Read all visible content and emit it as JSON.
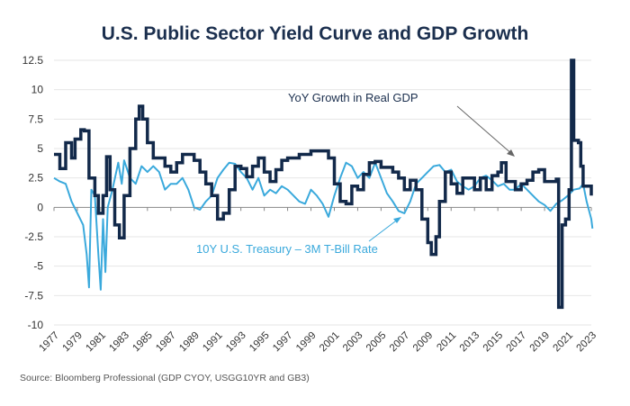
{
  "chart_data": {
    "type": "line",
    "title": "U.S. Public Sector Yield Curve and GDP Growth",
    "source": "Source: Bloomberg Professional (GDP CYOY, USGG10YR and GB3)",
    "xlabel": "",
    "ylabel": "",
    "xlim": [
      1977,
      2023
    ],
    "ylim": [
      -10,
      12.5
    ],
    "yticks": [
      "12.5",
      "10",
      "7.5",
      "5",
      "2.5",
      "0",
      "-2.5",
      "-5",
      "-7.5",
      "-10"
    ],
    "xticks": [
      "1977",
      "1979",
      "1981",
      "1983",
      "1985",
      "1987",
      "1989",
      "1991",
      "1993",
      "1995",
      "1997",
      "1999",
      "2001",
      "2003",
      "2005",
      "2007",
      "2009",
      "2011",
      "2013",
      "2015",
      "2017",
      "2019",
      "2021",
      "2023"
    ],
    "grid": true,
    "annotations": [
      {
        "text": "YoY Growth in Real GDP",
        "series": "gdp"
      },
      {
        "text": "10Y U.S. Treasury – 3M T-Bill Rate",
        "series": "spread"
      }
    ],
    "colors": {
      "gdp": "#12294a",
      "spread": "#3aa9dc",
      "title": "#1b2f4e"
    },
    "series": [
      {
        "id": "gdp",
        "name": "YoY Growth in Real GDP",
        "x": [
          1977,
          1977.5,
          1978,
          1978.5,
          1978.8,
          1979.3,
          1979.6,
          1980,
          1980.5,
          1980.8,
          1981.2,
          1981.5,
          1981.8,
          1982.2,
          1982.6,
          1983,
          1983.5,
          1984,
          1984.3,
          1984.6,
          1985,
          1985.5,
          1986.5,
          1987,
          1987.5,
          1988,
          1989,
          1989.5,
          1990,
          1990.5,
          1991,
          1991.5,
          1992,
          1992.5,
          1993,
          1993.5,
          1994,
          1994.5,
          1995,
          1995.5,
          1996,
          1996.5,
          1997,
          1998,
          1999,
          2000,
          2000.5,
          2001,
          2001.5,
          2002,
          2002.5,
          2003,
          2003.5,
          2004,
          2004.5,
          2005,
          2006,
          2006.5,
          2007,
          2007.5,
          2008,
          2008.5,
          2009,
          2009.3,
          2009.7,
          2010,
          2010.5,
          2011,
          2011.5,
          2012,
          2012.5,
          2013,
          2013.5,
          2014,
          2014.5,
          2015,
          2015.3,
          2015.7,
          2016.5,
          2017,
          2017.5,
          2018,
          2018.5,
          2019,
          2019.5,
          2020,
          2020.2,
          2020.5,
          2020.8,
          2021.1,
          2021.3,
          2021.5,
          2021.9,
          2022.1,
          2022.3,
          2022.8,
          2023
        ],
        "values": [
          4.5,
          3.3,
          5.5,
          4.2,
          5.8,
          6.6,
          6.5,
          2.5,
          1.0,
          -0.5,
          1.0,
          4.3,
          1.5,
          -1.5,
          -2.6,
          1.0,
          5.0,
          7.5,
          8.6,
          7.5,
          5.5,
          4.2,
          3.5,
          3.0,
          3.8,
          4.5,
          4.0,
          3.0,
          2.0,
          1.0,
          -1.0,
          -0.5,
          1.5,
          3.5,
          3.3,
          2.6,
          3.5,
          4.2,
          3.0,
          2.2,
          3.2,
          4.0,
          4.2,
          4.5,
          4.8,
          4.8,
          4.2,
          2.0,
          0.5,
          0.3,
          1.8,
          1.5,
          2.8,
          3.8,
          3.9,
          3.4,
          3.0,
          2.5,
          1.5,
          2.3,
          1.5,
          -1.0,
          -3.0,
          -4.0,
          -2.5,
          0.5,
          3.0,
          2.0,
          1.2,
          2.5,
          2.5,
          1.5,
          2.5,
          1.5,
          2.7,
          3.0,
          3.8,
          2.2,
          1.5,
          2.0,
          2.3,
          3.0,
          3.2,
          2.2,
          2.2,
          2.4,
          -8.5,
          -1.5,
          -1.0,
          1.5,
          12.5,
          5.7,
          5.5,
          3.5,
          1.8,
          1.8,
          1.0
        ]
      },
      {
        "id": "spread",
        "name": "10Y U.S. Treasury – 3M T-Bill Rate",
        "x": [
          1977,
          1977.5,
          1978,
          1978.5,
          1979,
          1979.5,
          1979.8,
          1980,
          1980.2,
          1980.5,
          1980.8,
          1981,
          1981.2,
          1981.4,
          1981.6,
          1982,
          1982.5,
          1982.8,
          1983,
          1983.5,
          1984,
          1984.5,
          1985,
          1985.5,
          1986,
          1986.5,
          1987,
          1987.5,
          1988,
          1988.5,
          1989,
          1989.5,
          1990,
          1990.5,
          1991,
          1991.5,
          1992,
          1992.5,
          1993,
          1993.5,
          1994,
          1994.5,
          1995,
          1995.5,
          1996,
          1996.5,
          1997,
          1998,
          1998.5,
          1999,
          1999.5,
          2000,
          2000.5,
          2001,
          2001.5,
          2002,
          2002.5,
          2003,
          2003.5,
          2004,
          2004.5,
          2005,
          2005.5,
          2006,
          2006.5,
          2007,
          2007.5,
          2008,
          2008.5,
          2009,
          2009.5,
          2010,
          2010.5,
          2011,
          2011.5,
          2012,
          2012.5,
          2013,
          2013.5,
          2014,
          2014.5,
          2015,
          2015.5,
          2016,
          2016.5,
          2017,
          2017.5,
          2018,
          2018.5,
          2019,
          2019.5,
          2020,
          2020.5,
          2021,
          2021.5,
          2022,
          2022.3,
          2022.6,
          2023,
          2023.1
        ],
        "values": [
          2.5,
          2.2,
          2.0,
          0.5,
          -0.5,
          -1.5,
          -4.0,
          -6.8,
          1.5,
          1.0,
          -4.0,
          -7.0,
          -1.0,
          -5.5,
          0,
          1.5,
          3.8,
          2.0,
          4.0,
          2.5,
          2.0,
          3.5,
          3.0,
          3.5,
          3.0,
          1.5,
          2.0,
          2.0,
          2.5,
          1.5,
          0.0,
          -0.2,
          0.5,
          1.0,
          2.5,
          3.2,
          3.8,
          3.7,
          3.0,
          2.5,
          1.5,
          2.5,
          1.0,
          1.5,
          1.2,
          1.8,
          1.5,
          0.5,
          0.3,
          1.5,
          1.0,
          0.3,
          -0.8,
          1.0,
          2.5,
          3.8,
          3.5,
          2.5,
          3.0,
          2.5,
          3.8,
          2.5,
          1.2,
          0.5,
          -0.3,
          -0.5,
          0.5,
          2.0,
          2.5,
          3.0,
          3.5,
          3.6,
          3.0,
          3.2,
          2.2,
          1.8,
          1.5,
          1.8,
          2.5,
          2.7,
          2.3,
          1.8,
          2.0,
          1.5,
          1.5,
          2.0,
          1.5,
          1.0,
          0.5,
          0.2,
          -0.3,
          0.3,
          0.6,
          1.0,
          1.5,
          1.6,
          2.0,
          0.5,
          -1.0,
          -1.8
        ]
      }
    ]
  }
}
